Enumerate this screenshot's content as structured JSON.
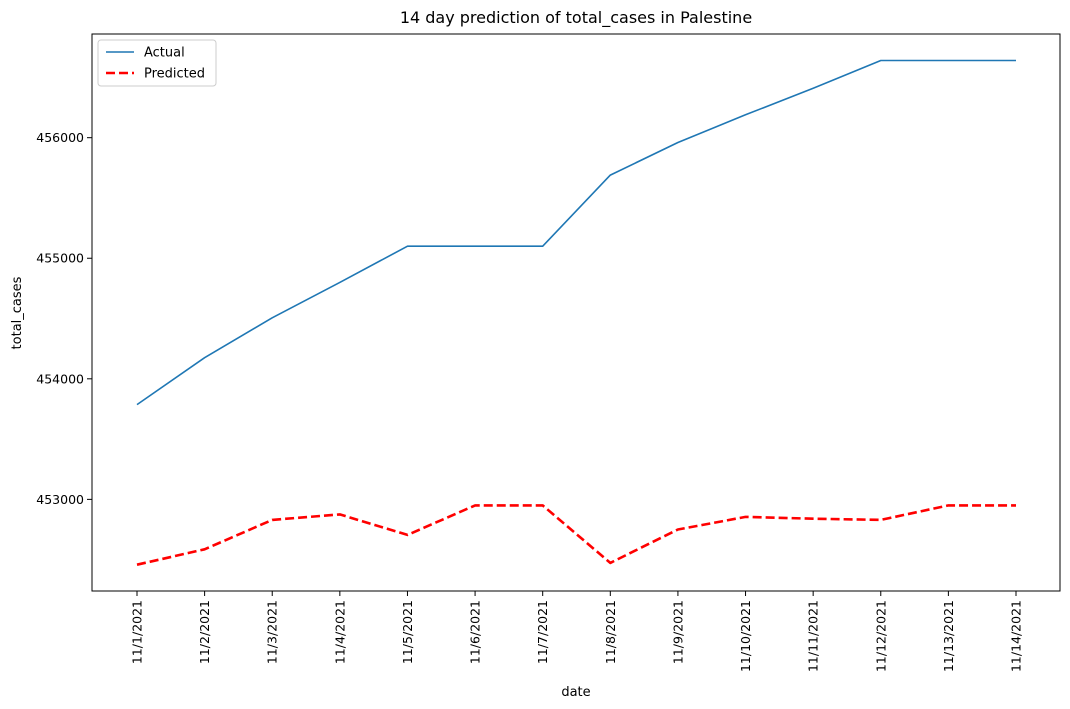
{
  "chart_data": {
    "type": "line",
    "title": "14 day prediction of total_cases in Palestine",
    "xlabel": "date",
    "ylabel": "total_cases",
    "categories": [
      "11/1/2021",
      "11/2/2021",
      "11/3/2021",
      "11/4/2021",
      "11/5/2021",
      "11/6/2021",
      "11/7/2021",
      "11/8/2021",
      "11/9/2021",
      "11/10/2021",
      "11/11/2021",
      "11/12/2021",
      "11/13/2021",
      "11/14/2021"
    ],
    "yticks": [
      453000,
      454000,
      455000,
      456000
    ],
    "ylim": [
      452240,
      456860
    ],
    "grid": false,
    "legend_position": "top-left",
    "series": [
      {
        "name": "Actual",
        "color": "#1f77b4",
        "style": "solid",
        "values": [
          453786,
          454175,
          454506,
          454800,
          455100,
          455100,
          455100,
          455690,
          455960,
          456190,
          456410,
          456640,
          456640,
          456640
        ]
      },
      {
        "name": "Predicted",
        "color": "#ff0000",
        "style": "dashed",
        "values": [
          452458,
          452586,
          452830,
          452875,
          452705,
          452950,
          452950,
          452473,
          452750,
          452855,
          452840,
          452830,
          452950,
          452950
        ]
      }
    ]
  }
}
